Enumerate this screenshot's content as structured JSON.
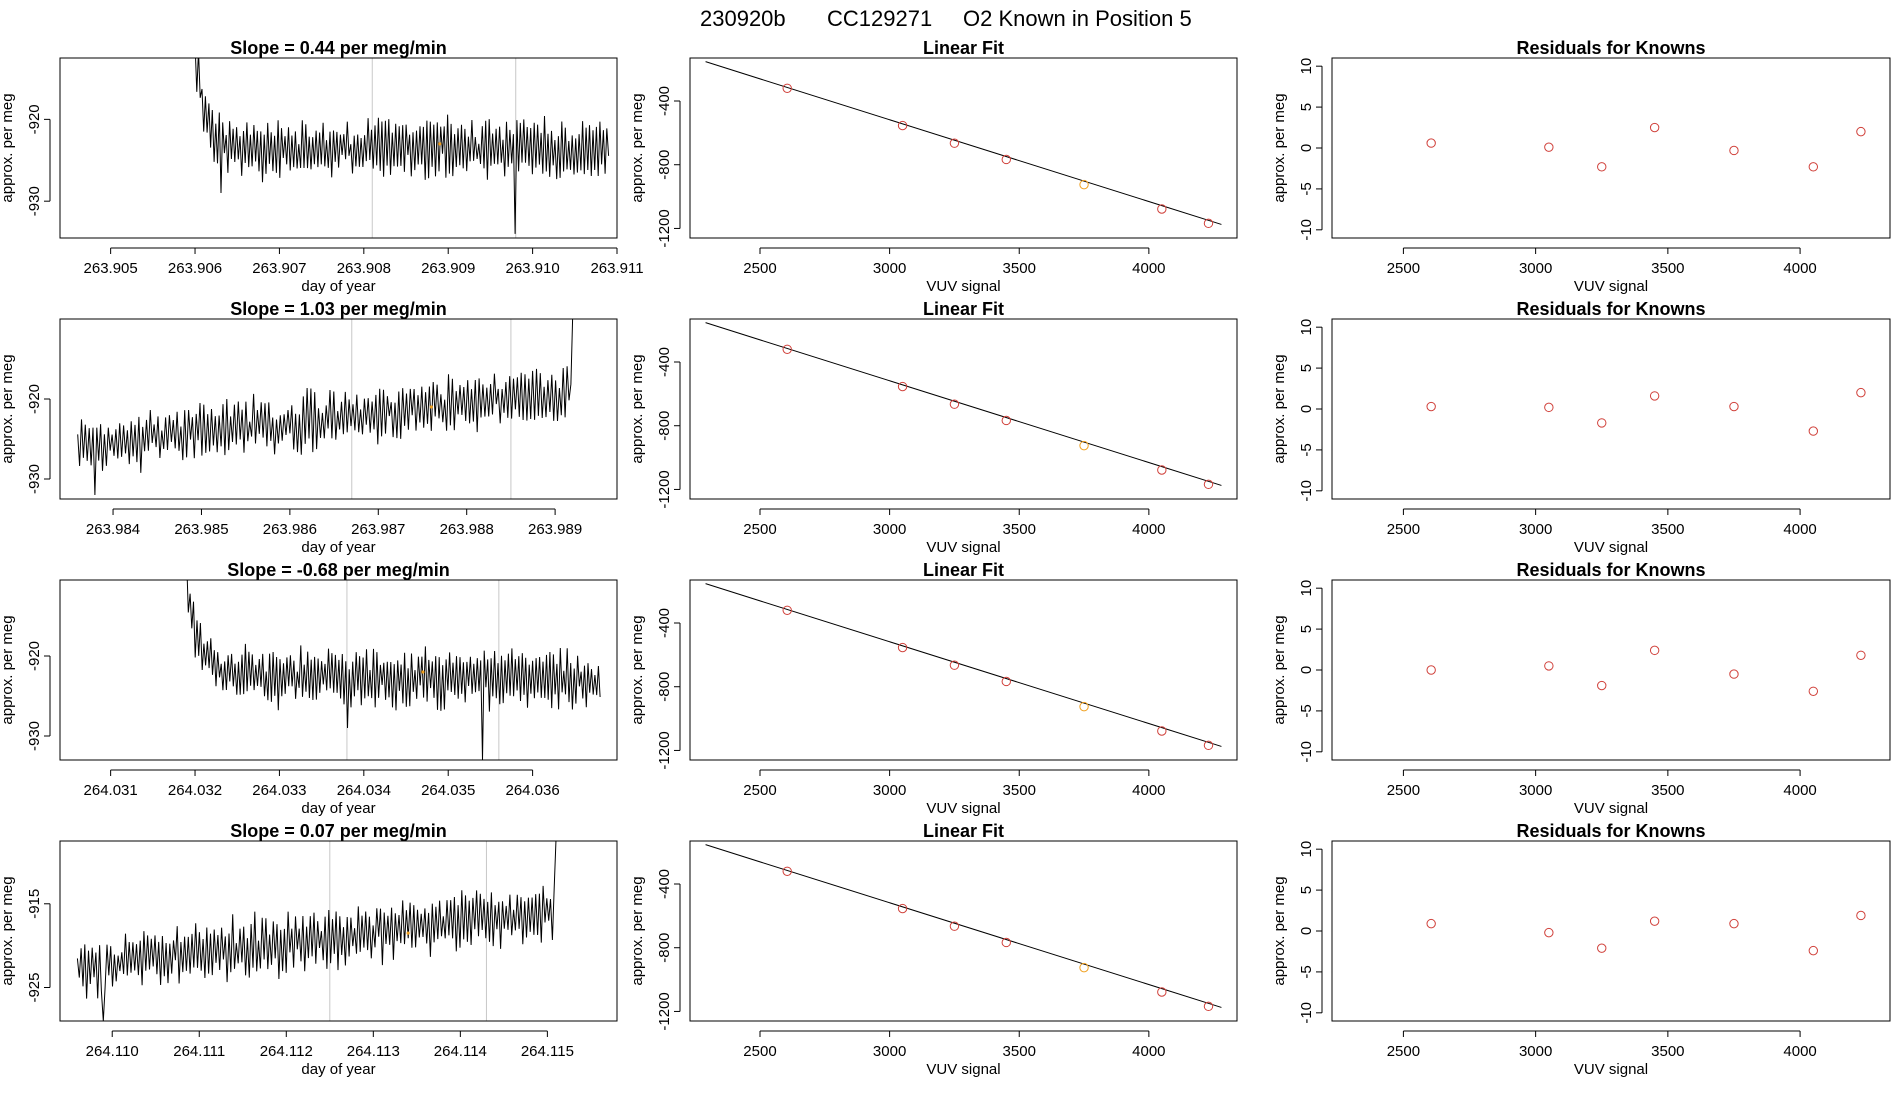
{
  "figure": {
    "title_parts": [
      "230920b",
      "CC129271",
      "O2 Known in Position  5"
    ]
  },
  "colors": {
    "trace": "#000000",
    "fit_line": "#000000",
    "points": "#d0403a",
    "highlight": "#f0a020",
    "frame": "#000000",
    "vline": "#c8c8c8"
  },
  "chart_data": [
    {
      "row": 1,
      "type": "line",
      "title": "Slope =  0.44  per meg/min",
      "xlabel": "day of year",
      "ylabel": "approx. per meg",
      "xlim": [
        263.9044,
        263.911
      ],
      "ylim": [
        -934.5,
        -912.5
      ],
      "xticks": [
        263.905,
        263.906,
        263.907,
        263.908,
        263.909,
        263.91,
        263.911
      ],
      "xtick_labels": [
        "263.905",
        "263.906",
        "263.907",
        "263.908",
        "263.909",
        "263.910",
        "263.911"
      ],
      "yticks": [
        -920,
        -930
      ],
      "ytick_labels": [
        "-920",
        "-930"
      ],
      "vlines": [
        263.9081,
        263.9098
      ],
      "trace": {
        "x_start": 263.906,
        "x_end": 263.9109,
        "n": 240,
        "start_level": -912,
        "settle": 0.0004,
        "level": -923.5,
        "drift": 0,
        "amp": 3.2,
        "seed": 11,
        "spikes": [
          {
            "x": 263.9098,
            "y": -934
          },
          {
            "x": 263.9063,
            "y": -929
          }
        ]
      },
      "highlight_point": {
        "x": 263.9089,
        "y": -923
      }
    },
    {
      "row": 1,
      "type": "scatter",
      "title": "Linear Fit",
      "xlabel": "VUV signal",
      "ylabel": "approx. per meg",
      "xlim": [
        2230,
        4340
      ],
      "ylim": [
        -1260,
        -130
      ],
      "xticks": [
        2500,
        3000,
        3500,
        4000
      ],
      "xtick_labels": [
        "2500",
        "3000",
        "3500",
        "4000"
      ],
      "yticks": [
        -400,
        -800,
        -1200
      ],
      "ytick_labels": [
        "-400",
        "-800",
        "-1200"
      ],
      "fit_line": {
        "x": [
          2290,
          4280
        ],
        "y": [
          -153,
          -1175
        ]
      },
      "points": {
        "x": [
          2605,
          3050,
          3250,
          3450,
          3750,
          4050,
          4230
        ],
        "y": [
          -320,
          -554,
          -665,
          -767,
          -925,
          -1078,
          -1168
        ]
      },
      "highlight_index": 4
    },
    {
      "row": 1,
      "type": "scatter",
      "title": "Residuals for Knowns",
      "xlabel": "VUV signal",
      "ylabel": "approx. per meg",
      "xlim": [
        2230,
        4340
      ],
      "ylim": [
        -11,
        11
      ],
      "xticks": [
        2500,
        3000,
        3500,
        4000
      ],
      "xtick_labels": [
        "2500",
        "3000",
        "3500",
        "4000"
      ],
      "yticks": [
        10,
        5,
        0,
        -5,
        -10
      ],
      "ytick_labels": [
        "10",
        "5",
        "0",
        "-5",
        "-10"
      ],
      "points": {
        "x": [
          2605,
          3050,
          3250,
          3450,
          3750,
          4050,
          4230
        ],
        "y": [
          0.6,
          0.1,
          -2.3,
          2.5,
          -0.3,
          -2.3,
          2.0
        ]
      }
    },
    {
      "row": 2,
      "type": "line",
      "title": "Slope =  1.03  per meg/min",
      "xlabel": "day of year",
      "ylabel": "approx. per meg",
      "xlim": [
        263.9834,
        263.9897
      ],
      "ylim": [
        -932.5,
        -910
      ],
      "xticks": [
        263.984,
        263.985,
        263.986,
        263.987,
        263.988,
        263.989
      ],
      "xtick_labels": [
        "263.984",
        "263.985",
        "263.986",
        "263.987",
        "263.988",
        "263.989"
      ],
      "yticks": [
        -920,
        -930
      ],
      "ytick_labels": [
        "-920",
        "-930"
      ],
      "vlines": [
        263.9867,
        263.9885
      ],
      "trace": {
        "x_start": 263.9836,
        "x_end": 263.9892,
        "n": 260,
        "start_level": -926.5,
        "settle": 0,
        "level": -926,
        "drift": 7,
        "amp": 3.2,
        "seed": 23,
        "spikes": [
          {
            "x": 263.9893,
            "y": -912
          },
          {
            "x": 263.9894,
            "y": -909
          },
          {
            "x": 263.9838,
            "y": -932
          }
        ]
      },
      "highlight_point": {
        "x": 263.9876,
        "y": -921
      }
    },
    {
      "row": 2,
      "type": "scatter",
      "title": "Linear Fit",
      "xlabel": "VUV signal",
      "ylabel": "approx. per meg",
      "xlim": [
        2230,
        4340
      ],
      "ylim": [
        -1260,
        -130
      ],
      "xticks": [
        2500,
        3000,
        3500,
        4000
      ],
      "xtick_labels": [
        "2500",
        "3000",
        "3500",
        "4000"
      ],
      "yticks": [
        -400,
        -800,
        -1200
      ],
      "ytick_labels": [
        "-400",
        "-800",
        "-1200"
      ],
      "fit_line": {
        "x": [
          2290,
          4280
        ],
        "y": [
          -153,
          -1175
        ]
      },
      "points": {
        "x": [
          2605,
          3050,
          3250,
          3450,
          3750,
          4050,
          4230
        ],
        "y": [
          -320,
          -554,
          -665,
          -767,
          -925,
          -1078,
          -1168
        ]
      },
      "highlight_index": 4
    },
    {
      "row": 2,
      "type": "scatter",
      "title": "Residuals for Knowns",
      "xlabel": "VUV signal",
      "ylabel": "approx. per meg",
      "xlim": [
        2230,
        4340
      ],
      "ylim": [
        -11,
        11
      ],
      "xticks": [
        2500,
        3000,
        3500,
        4000
      ],
      "xtick_labels": [
        "2500",
        "3000",
        "3500",
        "4000"
      ],
      "yticks": [
        10,
        5,
        0,
        -5,
        -10
      ],
      "ytick_labels": [
        "10",
        "5",
        "0",
        "-5",
        "-10"
      ],
      "points": {
        "x": [
          2605,
          3050,
          3250,
          3450,
          3750,
          4050,
          4230
        ],
        "y": [
          0.3,
          0.2,
          -1.7,
          1.6,
          0.3,
          -2.7,
          2.0
        ]
      }
    },
    {
      "row": 3,
      "type": "line",
      "title": "Slope =  -0.68  per meg/min",
      "xlabel": "day of year",
      "ylabel": "approx. per meg",
      "xlim": [
        264.0304,
        264.037
      ],
      "ylim": [
        -933,
        -910.5
      ],
      "xticks": [
        264.031,
        264.032,
        264.033,
        264.034,
        264.035,
        264.036
      ],
      "xtick_labels": [
        "264.031",
        "264.032",
        "264.033",
        "264.034",
        "264.035",
        "264.036"
      ],
      "yticks": [
        -920,
        -930
      ],
      "ytick_labels": [
        "-920",
        "-930"
      ],
      "vlines": [
        264.0338,
        264.0356
      ],
      "trace": {
        "x_start": 264.0319,
        "x_end": 264.0368,
        "n": 240,
        "start_level": -910,
        "settle": 0.0004,
        "level": -922.5,
        "drift": -0.5,
        "amp": 3.3,
        "seed": 37,
        "spikes": [
          {
            "x": 264.0354,
            "y": -933
          },
          {
            "x": 264.0338,
            "y": -929
          }
        ]
      },
      "highlight_point": {
        "x": 264.0347,
        "y": -922
      }
    },
    {
      "row": 3,
      "type": "scatter",
      "title": "Linear Fit",
      "xlabel": "VUV signal",
      "ylabel": "approx. per meg",
      "xlim": [
        2230,
        4340
      ],
      "ylim": [
        -1260,
        -130
      ],
      "xticks": [
        2500,
        3000,
        3500,
        4000
      ],
      "xtick_labels": [
        "2500",
        "3000",
        "3500",
        "4000"
      ],
      "yticks": [
        -400,
        -800,
        -1200
      ],
      "ytick_labels": [
        "-400",
        "-800",
        "-1200"
      ],
      "fit_line": {
        "x": [
          2290,
          4280
        ],
        "y": [
          -153,
          -1175
        ]
      },
      "points": {
        "x": [
          2605,
          3050,
          3250,
          3450,
          3750,
          4050,
          4230
        ],
        "y": [
          -320,
          -554,
          -665,
          -767,
          -925,
          -1078,
          -1168
        ]
      },
      "highlight_index": 4
    },
    {
      "row": 3,
      "type": "scatter",
      "title": "Residuals for Knowns",
      "xlabel": "VUV signal",
      "ylabel": "approx. per meg",
      "xlim": [
        2230,
        4340
      ],
      "ylim": [
        -11,
        11
      ],
      "xticks": [
        2500,
        3000,
        3500,
        4000
      ],
      "xtick_labels": [
        "2500",
        "3000",
        "3500",
        "4000"
      ],
      "yticks": [
        10,
        5,
        0,
        -5,
        -10
      ],
      "ytick_labels": [
        "10",
        "5",
        "0",
        "-5",
        "-10"
      ],
      "points": {
        "x": [
          2605,
          3050,
          3250,
          3450,
          3750,
          4050,
          4230
        ],
        "y": [
          0.0,
          0.5,
          -1.9,
          2.4,
          -0.5,
          -2.6,
          1.8
        ]
      }
    },
    {
      "row": 4,
      "type": "line",
      "title": "Slope =  0.07  per meg/min",
      "xlabel": "day of year",
      "ylabel": "approx. per meg",
      "xlim": [
        264.1094,
        264.1158
      ],
      "ylim": [
        -929,
        -907.5
      ],
      "xticks": [
        264.11,
        264.111,
        264.112,
        264.113,
        264.114,
        264.115
      ],
      "xtick_labels": [
        "264.110",
        "264.111",
        "264.112",
        "264.113",
        "264.114",
        "264.115"
      ],
      "yticks": [
        -915,
        -925
      ],
      "ytick_labels": [
        "-915",
        "-925"
      ],
      "vlines": [
        264.1125,
        264.1143
      ],
      "trace": {
        "x_start": 264.1096,
        "x_end": 264.1151,
        "n": 260,
        "start_level": -923,
        "settle": 0,
        "level": -922.5,
        "drift": 6.5,
        "amp": 3.2,
        "seed": 53,
        "spikes": [
          {
            "x": 264.1152,
            "y": -910
          },
          {
            "x": 264.1153,
            "y": -907
          },
          {
            "x": 264.1099,
            "y": -929
          }
        ]
      },
      "highlight_point": {
        "x": 264.1134,
        "y": -918.5
      }
    },
    {
      "row": 4,
      "type": "scatter",
      "title": "Linear Fit",
      "xlabel": "VUV signal",
      "ylabel": "approx. per meg",
      "xlim": [
        2230,
        4340
      ],
      "ylim": [
        -1260,
        -130
      ],
      "xticks": [
        2500,
        3000,
        3500,
        4000
      ],
      "xtick_labels": [
        "2500",
        "3000",
        "3500",
        "4000"
      ],
      "yticks": [
        -400,
        -800,
        -1200
      ],
      "ytick_labels": [
        "-400",
        "-800",
        "-1200"
      ],
      "fit_line": {
        "x": [
          2290,
          4280
        ],
        "y": [
          -153,
          -1175
        ]
      },
      "points": {
        "x": [
          2605,
          3050,
          3250,
          3450,
          3750,
          4050,
          4230
        ],
        "y": [
          -320,
          -554,
          -665,
          -767,
          -925,
          -1078,
          -1168
        ]
      },
      "highlight_index": 4
    },
    {
      "row": 4,
      "type": "scatter",
      "title": "Residuals for Knowns",
      "xlabel": "VUV signal",
      "ylabel": "approx. per meg",
      "xlim": [
        2230,
        4340
      ],
      "ylim": [
        -11,
        11
      ],
      "xticks": [
        2500,
        3000,
        3500,
        4000
      ],
      "xtick_labels": [
        "2500",
        "3000",
        "3500",
        "4000"
      ],
      "yticks": [
        10,
        5,
        0,
        -5,
        -10
      ],
      "ytick_labels": [
        "10",
        "5",
        "0",
        "-5",
        "-10"
      ],
      "points": {
        "x": [
          2605,
          3050,
          3250,
          3450,
          3750,
          4050,
          4230
        ],
        "y": [
          0.9,
          -0.2,
          -2.1,
          1.2,
          0.9,
          -2.4,
          1.9
        ]
      }
    }
  ]
}
